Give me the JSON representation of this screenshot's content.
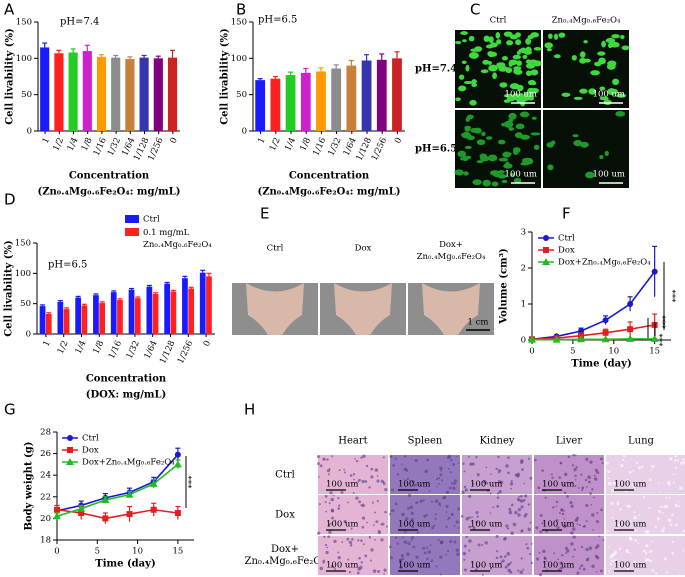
{
  "panel_labels": [
    "A",
    "B",
    "C",
    "D",
    "E",
    "F",
    "G",
    "H"
  ],
  "chart_data": [
    {
      "type": "bar",
      "title": "pH=7.4",
      "ylabel": "Cell livability (%)",
      "xlabel": [
        "Concentration",
        "(Zn₀.₄Mg₀.₆Fe₂O₄: mg/mL)"
      ],
      "categories": [
        "1",
        "1/2",
        "1/4",
        "1/8",
        "1/16",
        "1/32",
        "1/64",
        "1/128",
        "1/256",
        "0"
      ],
      "values": [
        115,
        107,
        108,
        110,
        102,
        101,
        99,
        101,
        100,
        101
      ],
      "errors": [
        6,
        4,
        5,
        8,
        3,
        3,
        3,
        3,
        3,
        10
      ],
      "colors": [
        "#1a1aff",
        "#ff2020",
        "#22cc22",
        "#cc22cc",
        "#ff9900",
        "#8c8c8c",
        "#c87f3a",
        "#3535b0",
        "#800080",
        "#cc2222"
      ],
      "ylim": [
        0,
        150
      ],
      "yticks": [
        0,
        50,
        100,
        150
      ],
      "grid": false
    },
    {
      "type": "bar",
      "title": "pH=6.5",
      "ylabel": "Cell livability (%)",
      "xlabel": [
        "Concentration",
        "(Zn₀.₄Mg₀.₆Fe₂O₄: mg/mL)"
      ],
      "categories": [
        "1",
        "1/2",
        "1/4",
        "1/8",
        "1/16",
        "1/32",
        "1/64",
        "1/128",
        "1/256",
        "0"
      ],
      "values": [
        70,
        72,
        77,
        80,
        82,
        86,
        90,
        97,
        98,
        100
      ],
      "errors": [
        2,
        3,
        4,
        6,
        5,
        5,
        7,
        8,
        8,
        9
      ],
      "colors": [
        "#1a1aff",
        "#ff2020",
        "#22cc22",
        "#cc22cc",
        "#ff9900",
        "#8c8c8c",
        "#c87f3a",
        "#3535b0",
        "#800080",
        "#cc2222"
      ],
      "ylim": [
        0,
        150
      ],
      "yticks": [
        0,
        50,
        100,
        150
      ],
      "grid": false
    },
    {
      "type": "bar",
      "title": "pH=6.5",
      "ylabel": "Cell livability (%)",
      "xlabel": [
        "Concentration",
        "(DOX: mg/mL)"
      ],
      "categories": [
        "1",
        "1/2",
        "1/4",
        "1/8",
        "1/16",
        "1/32",
        "1/64",
        "1/128",
        "1/256",
        "0"
      ],
      "series": [
        {
          "name": "Ctrl",
          "color": "#1a1aff",
          "values": [
            46,
            53,
            60,
            64,
            69,
            73,
            78,
            83,
            92,
            101
          ],
          "errors": [
            2,
            2,
            2,
            2,
            2,
            2,
            2,
            2,
            3,
            4
          ]
        },
        {
          "name": "0.1 mg/mL Zn₀.₄Mg₀.₆Fe₂O₄",
          "color": "#ff2020",
          "values": [
            33,
            41,
            47,
            51,
            56,
            59,
            66,
            70,
            75,
            95
          ],
          "errors": [
            2,
            2,
            2,
            2,
            2,
            2,
            2,
            2,
            2,
            5
          ]
        }
      ],
      "ylim": [
        0,
        150
      ],
      "yticks": [
        0,
        50,
        100,
        150
      ],
      "grid": false,
      "legend": "upper-right"
    },
    {
      "type": "line",
      "ylabel": "Volume (cm³)",
      "xlabel": [
        "Time (day)"
      ],
      "x": [
        0,
        3,
        6,
        9,
        12,
        15
      ],
      "series": [
        {
          "name": "Ctrl",
          "color": "#1a1acc",
          "marker": "circle",
          "values": [
            0.02,
            0.1,
            0.25,
            0.55,
            1.0,
            1.9
          ],
          "errors": [
            0.01,
            0.04,
            0.08,
            0.12,
            0.2,
            0.7
          ]
        },
        {
          "name": "Dox",
          "color": "#e02020",
          "marker": "square",
          "values": [
            0.02,
            0.05,
            0.12,
            0.2,
            0.3,
            0.42
          ],
          "errors": [
            0.01,
            0.03,
            0.05,
            0.1,
            0.2,
            0.3
          ]
        },
        {
          "name": "Dox+Zn₀.₄Mg₀.₆Fe₂O₄",
          "color": "#22bb22",
          "marker": "triangle",
          "values": [
            0.01,
            0.01,
            0.02,
            0.02,
            0.03,
            0.03
          ],
          "errors": [
            0.005,
            0.005,
            0.01,
            0.01,
            0.01,
            0.01
          ]
        }
      ],
      "xlim": [
        0,
        17
      ],
      "xticks": [
        0,
        5,
        10,
        15
      ],
      "ylim": [
        0,
        3
      ],
      "yticks": [
        0,
        1,
        2,
        3
      ],
      "grid": false,
      "legend": "upper-left",
      "annotations": [
        "***",
        "***",
        "***"
      ]
    },
    {
      "type": "line",
      "ylabel": "Body weight (g)",
      "xlabel": [
        "Time (day)"
      ],
      "x": [
        0,
        3,
        6,
        9,
        12,
        15
      ],
      "series": [
        {
          "name": "Ctrl",
          "color": "#1a1acc",
          "marker": "circle",
          "values": [
            20.7,
            21.2,
            21.9,
            22.4,
            23.4,
            25.9
          ],
          "errors": [
            0.3,
            0.4,
            0.4,
            0.4,
            0.4,
            0.6
          ]
        },
        {
          "name": "Dox",
          "color": "#e02020",
          "marker": "square",
          "values": [
            20.8,
            20.5,
            20.0,
            20.4,
            20.8,
            20.5
          ],
          "errors": [
            0.4,
            0.6,
            0.5,
            0.7,
            0.6,
            0.6
          ]
        },
        {
          "name": "Dox+Zn₀.₄Mg₀.₆Fe₂O₄",
          "color": "#22bb22",
          "marker": "triangle",
          "values": [
            20.2,
            20.9,
            21.7,
            22.2,
            23.2,
            25.0
          ],
          "errors": [
            0.3,
            0.3,
            0.3,
            0.3,
            0.4,
            0.4
          ]
        }
      ],
      "xlim": [
        0,
        17
      ],
      "xticks": [
        0,
        5,
        10,
        15
      ],
      "ylim": [
        18,
        28
      ],
      "yticks": [
        18,
        20,
        22,
        24,
        26,
        28
      ],
      "grid": false,
      "legend": "upper-left",
      "annotations": [
        "***"
      ]
    }
  ],
  "images": {
    "C": {
      "columns": [
        "Ctrl",
        "Zn₀.₄Mg₀.₆Fe₂O₄"
      ],
      "rows": [
        "pH=7.4",
        "pH=6.5"
      ],
      "scale_label": "100 um"
    },
    "E": {
      "columns": [
        "Ctrl",
        "Dox",
        "Dox+ Zn₀.₄Mg₀.₆Fe₂O₄"
      ],
      "scale_label": "1 cm"
    },
    "H": {
      "columns": [
        "Heart",
        "Spleen",
        "Kidney",
        "Liver",
        "Lung"
      ],
      "rows": [
        "Ctrl",
        "Dox",
        "Dox+ Zn₀.₄Mg₀.₆Fe₂O₄"
      ],
      "scale_label": "100 um"
    }
  }
}
